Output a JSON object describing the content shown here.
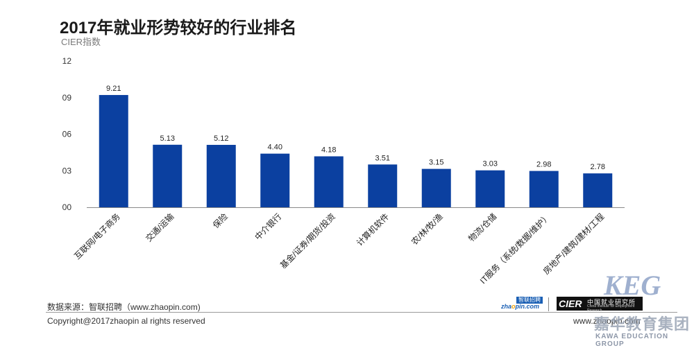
{
  "header": {
    "title": "2017年就业形势较好的行业排名",
    "subtitle": "CIER指数"
  },
  "footer": {
    "source": "数据来源：智联招聘（www.zhaopin.com)",
    "copyright": "Copyright@2017zhaopin al rights reserved",
    "website": "www.zhaopin.com"
  },
  "logos": {
    "zhaopin_top": "智联招聘",
    "zhaopin_bottom_a": "zha",
    "zhaopin_bottom_o": "o",
    "zhaopin_bottom_b": "pin.com",
    "cier_mark": "CIER",
    "cier_cn": "中国就业研究所",
    "cier_en": "China Institute for Employment Research",
    "kec_mark": "KEG",
    "kec_cn": "嘉华教育集团",
    "kec_en": "KAWA EDUCATION GROUP"
  },
  "chart_data": {
    "type": "bar",
    "title": "2017年就业形势较好的行业排名",
    "ylabel": "CIER指数",
    "ylim": [
      0,
      12
    ],
    "yticks": [
      "00",
      "03",
      "06",
      "09",
      "12"
    ],
    "grid": false,
    "color": "#0b40a0",
    "categories": [
      "互联网/电子商务",
      "交通/运输",
      "保险",
      "中介银行",
      "基金/证券/期货/投资",
      "计算机软件",
      "农/林/牧/渔",
      "物流/仓储",
      "IT服务（系统/数据/维护）",
      "房地产/建筑/建材/工程"
    ],
    "values": [
      9.21,
      5.13,
      5.12,
      4.4,
      4.18,
      3.51,
      3.15,
      3.03,
      2.98,
      2.78
    ],
    "value_labels": [
      "9.21",
      "5.13",
      "5.12",
      "4.40",
      "4.18",
      "3.51",
      "3.15",
      "3.03",
      "2.98",
      "2.78"
    ]
  }
}
